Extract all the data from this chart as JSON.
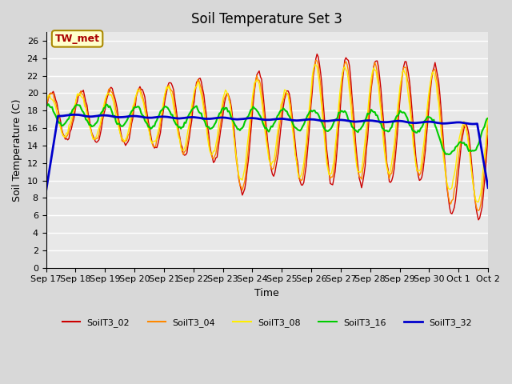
{
  "title": "Soil Temperature Set 3",
  "xlabel": "Time",
  "ylabel": "Soil Temperature (C)",
  "ylim": [
    0,
    27
  ],
  "yticks": [
    0,
    2,
    4,
    6,
    8,
    10,
    12,
    14,
    16,
    18,
    20,
    22,
    24,
    26
  ],
  "fig_bg_color": "#d8d8d8",
  "plot_bg": "#e8e8e8",
  "annotation_text": "TW_met",
  "annotation_color": "#aa0000",
  "annotation_bg": "#ffffcc",
  "annotation_border": "#aa8800",
  "series_colors": {
    "SoilT3_02": "#cc0000",
    "SoilT3_04": "#ff8800",
    "SoilT3_08": "#ffee00",
    "SoilT3_16": "#00cc00",
    "SoilT3_32": "#0000cc"
  },
  "num_points": 368,
  "x_tick_positions": [
    0,
    1,
    2,
    3,
    4,
    5,
    6,
    7,
    8,
    9,
    10,
    11,
    12,
    13,
    14,
    15
  ],
  "x_tick_labels": [
    "Sep 17",
    "Sep 18",
    "Sep 19",
    "Sep 20",
    "Sep 21",
    "Sep 22",
    "Sep 23",
    "Sep 24",
    "Sep 25",
    "Sep 26",
    "Sep 27",
    "Sep 28",
    "Sep 29",
    "Sep 30",
    "Oct 1",
    "Oct 2"
  ],
  "legend_entries": [
    "SoilT3_02",
    "SoilT3_04",
    "SoilT3_08",
    "SoilT3_16",
    "SoilT3_32"
  ]
}
